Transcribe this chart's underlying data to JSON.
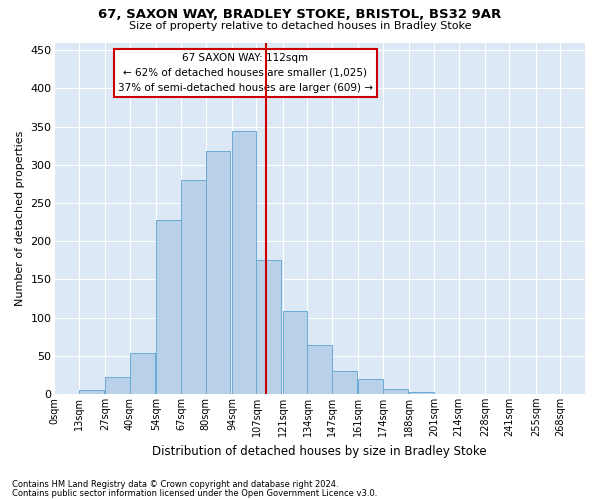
{
  "title_line1": "67, SAXON WAY, BRADLEY STOKE, BRISTOL, BS32 9AR",
  "title_line2": "Size of property relative to detached houses in Bradley Stoke",
  "xlabel": "Distribution of detached houses by size in Bradley Stoke",
  "ylabel": "Number of detached properties",
  "bar_color": "#b8d0e8",
  "bar_edge_color": "#6aaad4",
  "background_color": "#dce8f5",
  "annotation_box_color": "#ffffff",
  "annotation_box_edge": "#cc0000",
  "vline_color": "#cc0000",
  "vline_x": 112,
  "annotation_text": "67 SAXON WAY: 112sqm\n← 62% of detached houses are smaller (1,025)\n37% of semi-detached houses are larger (609) →",
  "categories": [
    "0sqm",
    "13sqm",
    "27sqm",
    "40sqm",
    "54sqm",
    "67sqm",
    "80sqm",
    "94sqm",
    "107sqm",
    "121sqm",
    "134sqm",
    "147sqm",
    "161sqm",
    "174sqm",
    "188sqm",
    "201sqm",
    "214sqm",
    "228sqm",
    "241sqm",
    "255sqm",
    "268sqm"
  ],
  "bin_left": [
    0,
    13,
    27,
    40,
    54,
    67,
    80,
    94,
    107,
    121,
    134,
    147,
    161,
    174,
    188,
    201,
    214,
    228,
    241,
    255,
    268
  ],
  "bin_width": 13,
  "values": [
    0,
    5,
    22,
    53,
    228,
    280,
    318,
    344,
    175,
    109,
    64,
    30,
    19,
    6,
    2,
    0,
    0,
    0,
    0,
    0,
    0
  ],
  "ylim": [
    0,
    460
  ],
  "yticks": [
    0,
    50,
    100,
    150,
    200,
    250,
    300,
    350,
    400,
    450
  ],
  "footer_line1": "Contains HM Land Registry data © Crown copyright and database right 2024.",
  "footer_line2": "Contains public sector information licensed under the Open Government Licence v3.0."
}
